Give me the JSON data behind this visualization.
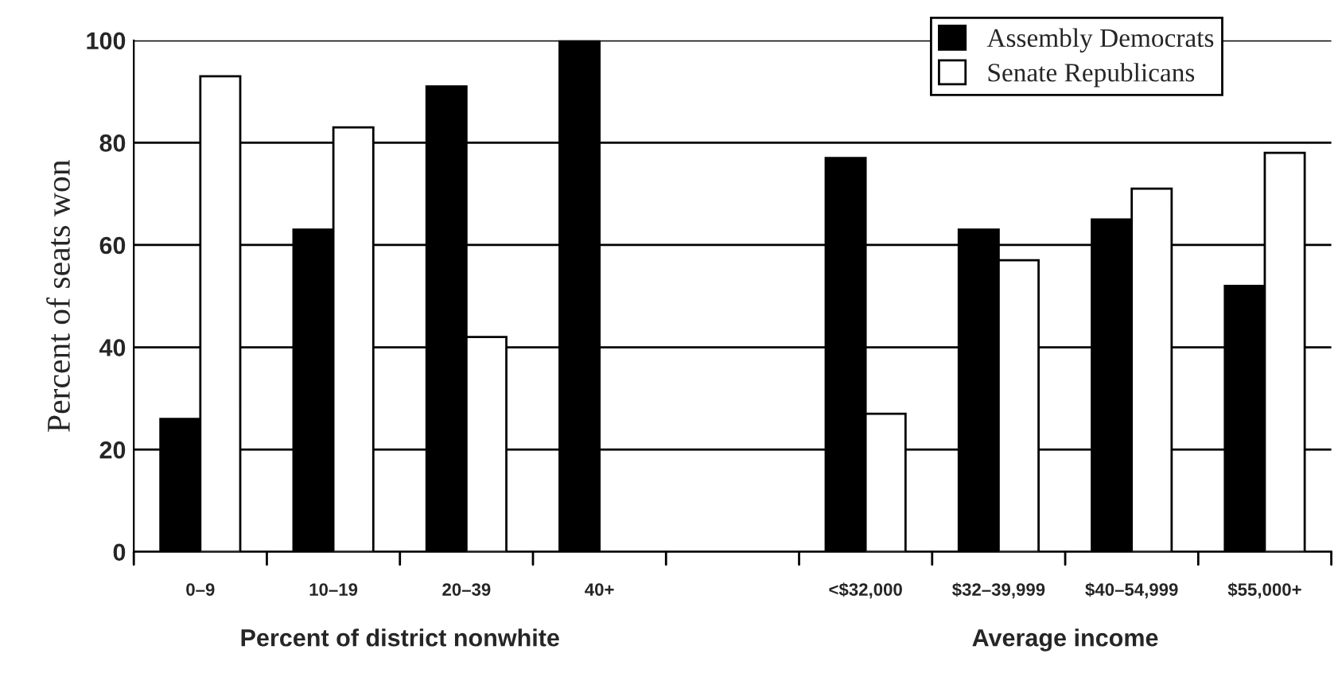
{
  "chart_data": {
    "type": "bar",
    "ylabel": "Percent of seats won",
    "categories": [
      "0–9",
      "10–19",
      "20–39",
      "40+",
      null,
      "<$32,000",
      "$32–39,999",
      "$40–54,999",
      "$55,000+"
    ],
    "series": [
      {
        "name": "Assembly Democrats",
        "color": "#000000",
        "values": [
          26,
          63,
          91,
          100,
          null,
          77,
          63,
          65,
          52
        ]
      },
      {
        "name": "Senate Republicans",
        "color": "#ffffff",
        "values": [
          93,
          83,
          42,
          null,
          null,
          27,
          57,
          71,
          78
        ]
      }
    ],
    "ylim": [
      0,
      100
    ],
    "yticks": [
      0,
      20,
      40,
      60,
      80,
      100
    ],
    "grid": "y",
    "legend": "top right",
    "annotations": [
      "Percent of district nonwhite",
      "Average income"
    ]
  }
}
